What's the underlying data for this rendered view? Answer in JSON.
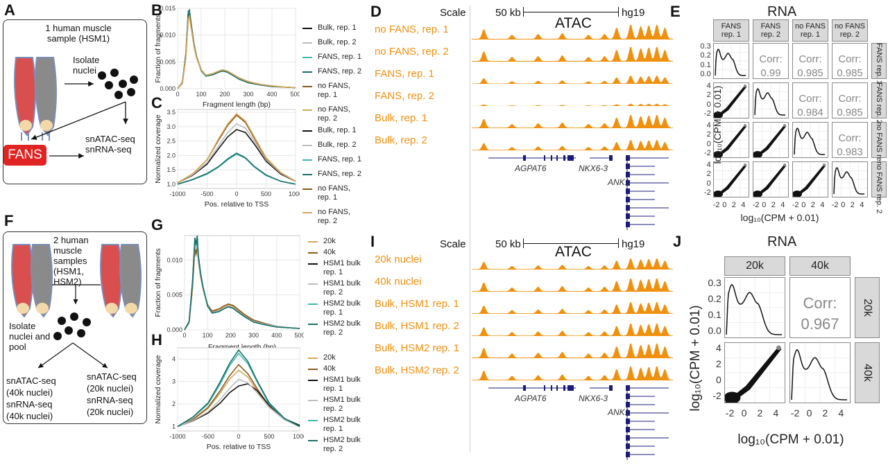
{
  "panels": {
    "A": {
      "label": "A",
      "sample": "1 human muscle sample (HSM1)",
      "isolate": "Isolate nuclei",
      "fans": "FANS",
      "assays": "snATAC-seq\nsnRNA-seq"
    },
    "F": {
      "label": "F",
      "sample": "2 human muscle samples (HSM1, HSM2)",
      "isolate": "Isolate nuclei and pool",
      "left": "snATAC-seq (40k nuclei)\nsnRNA-seq (40k nuclei)",
      "right": "snATAC-seq (20k nuclei)\nsnRNA-seq (20k nuclei)"
    },
    "D": {
      "label": "D"
    },
    "I": {
      "label": "I"
    },
    "E": {
      "label": "E"
    },
    "J": {
      "label": "J"
    }
  },
  "colors": {
    "black": "#111111",
    "grey": "#bdbdbd",
    "teal_light": "#3fb7ad",
    "teal_dark": "#1a6f68",
    "brown": "#8a5a1a",
    "gold": "#d4a85a",
    "orange": "#f0900f",
    "navy": "#1b1b7a"
  },
  "chart_data": [
    {
      "panel": "B",
      "type": "line",
      "xlabel": "Fragment length (bp)",
      "ylabel": "Fraction of fragments",
      "xlim": [
        0,
        500
      ],
      "ylim": [
        0,
        0.015
      ],
      "xticks": [
        0,
        100,
        200,
        300,
        400,
        500
      ],
      "yticks": [
        0.0,
        0.005,
        0.01,
        0.015
      ],
      "x": [
        0,
        20,
        35,
        45,
        50,
        60,
        70,
        80,
        100,
        120,
        150,
        170,
        190,
        210,
        230,
        260,
        300,
        350,
        400,
        450,
        500
      ],
      "series": [
        {
          "name": "Bulk, rep. 1",
          "color": "#111111",
          "values": [
            0,
            0.001,
            0.006,
            0.0135,
            0.014,
            0.011,
            0.008,
            0.006,
            0.0035,
            0.0025,
            0.0028,
            0.0032,
            0.0035,
            0.0033,
            0.0028,
            0.002,
            0.0013,
            0.0008,
            0.0005,
            0.0003,
            0.0002
          ]
        },
        {
          "name": "Bulk, rep. 2",
          "color": "#bdbdbd",
          "values": [
            0,
            0.001,
            0.0058,
            0.0128,
            0.0133,
            0.0106,
            0.0077,
            0.0058,
            0.0034,
            0.0024,
            0.0027,
            0.0031,
            0.0034,
            0.0032,
            0.0027,
            0.0019,
            0.0012,
            0.0008,
            0.0005,
            0.0003,
            0.0002
          ]
        },
        {
          "name": "FANS, rep. 1",
          "color": "#3fb7ad",
          "values": [
            0,
            0.0012,
            0.0065,
            0.0142,
            0.0145,
            0.0112,
            0.0082,
            0.006,
            0.0033,
            0.0023,
            0.0026,
            0.003,
            0.0033,
            0.0031,
            0.0026,
            0.0018,
            0.0011,
            0.0007,
            0.0004,
            0.0003,
            0.0002
          ]
        },
        {
          "name": "FANS, rep. 2",
          "color": "#1a6f68",
          "values": [
            0,
            0.0012,
            0.0066,
            0.0144,
            0.0147,
            0.0114,
            0.0083,
            0.0061,
            0.0034,
            0.0024,
            0.0026,
            0.003,
            0.0033,
            0.0031,
            0.0026,
            0.0018,
            0.0011,
            0.0007,
            0.0004,
            0.0003,
            0.0002
          ]
        },
        {
          "name": "no FANS, rep. 1",
          "color": "#8a5a1a",
          "values": [
            0,
            0.0011,
            0.006,
            0.0132,
            0.0137,
            0.0108,
            0.0079,
            0.0059,
            0.0035,
            0.0025,
            0.0028,
            0.0032,
            0.0035,
            0.0033,
            0.0028,
            0.002,
            0.0013,
            0.0008,
            0.0005,
            0.0003,
            0.0002
          ]
        },
        {
          "name": "no FANS, rep. 2",
          "color": "#d4a85a",
          "values": [
            0,
            0.0011,
            0.0059,
            0.013,
            0.0135,
            0.0107,
            0.0078,
            0.0058,
            0.0035,
            0.0025,
            0.0028,
            0.0032,
            0.0035,
            0.0033,
            0.0028,
            0.002,
            0.0013,
            0.0008,
            0.0005,
            0.0003,
            0.0002
          ]
        }
      ]
    },
    {
      "panel": "C",
      "type": "line",
      "xlabel": "Pos. relative to TSS",
      "ylabel": "Normalized coverage",
      "xlim": [
        -1000,
        1000
      ],
      "ylim": [
        0.85,
        3.6
      ],
      "xticks": [
        -1000,
        -500,
        0,
        500,
        1000
      ],
      "yticks": [
        1.0,
        1.5,
        2.0,
        2.5,
        3.0,
        3.5
      ],
      "x": [
        -1000,
        -750,
        -500,
        -300,
        -150,
        0,
        150,
        300,
        500,
        750,
        1000
      ],
      "series": [
        {
          "name": "Bulk, rep. 1",
          "color": "#111111",
          "values": [
            1.05,
            1.3,
            1.7,
            2.25,
            2.65,
            2.9,
            2.8,
            2.4,
            1.8,
            1.35,
            1.1
          ]
        },
        {
          "name": "Bulk, rep. 2",
          "color": "#bdbdbd",
          "values": [
            1.05,
            1.32,
            1.75,
            2.35,
            2.8,
            3.1,
            2.95,
            2.5,
            1.85,
            1.38,
            1.1
          ]
        },
        {
          "name": "FANS, rep. 1",
          "color": "#3fb7ad",
          "values": [
            1.0,
            1.15,
            1.35,
            1.6,
            1.85,
            2.05,
            1.9,
            1.6,
            1.3,
            1.1,
            1.0
          ]
        },
        {
          "name": "FANS, rep. 2",
          "color": "#1a6f68",
          "values": [
            1.0,
            1.16,
            1.37,
            1.62,
            1.88,
            2.08,
            1.92,
            1.62,
            1.32,
            1.1,
            1.0
          ]
        },
        {
          "name": "no FANS, rep. 1",
          "color": "#8a5a1a",
          "values": [
            1.05,
            1.35,
            1.85,
            2.55,
            3.05,
            3.4,
            3.15,
            2.6,
            1.9,
            1.4,
            1.1
          ]
        },
        {
          "name": "no FANS, rep. 2",
          "color": "#d4a85a",
          "values": [
            1.05,
            1.35,
            1.85,
            2.6,
            3.1,
            3.45,
            3.2,
            2.65,
            1.92,
            1.4,
            1.1
          ]
        }
      ]
    },
    {
      "panel": "G",
      "type": "line",
      "xlabel": "Fragment length (bp)",
      "ylabel": "Fraction of fragments",
      "xlim": [
        0,
        500
      ],
      "ylim": [
        0,
        0.0135
      ],
      "xticks": [
        0,
        100,
        200,
        300,
        400,
        500
      ],
      "yticks": [
        0.0,
        0.005,
        0.01
      ],
      "x": [
        0,
        20,
        35,
        45,
        50,
        55,
        60,
        70,
        80,
        100,
        120,
        150,
        170,
        190,
        210,
        230,
        260,
        300,
        350,
        400,
        450,
        500
      ],
      "series": [
        {
          "name": "20k",
          "color": "#d4a85a",
          "values": [
            0,
            0.001,
            0.006,
            0.0115,
            0.0105,
            0.012,
            0.0098,
            0.0075,
            0.0058,
            0.0035,
            0.0026,
            0.0029,
            0.0033,
            0.0036,
            0.0034,
            0.0029,
            0.0021,
            0.0013,
            0.0008,
            0.0005,
            0.0003,
            0.0002
          ]
        },
        {
          "name": "40k",
          "color": "#8a5a1a",
          "values": [
            0,
            0.001,
            0.0062,
            0.0118,
            0.0108,
            0.0123,
            0.01,
            0.0076,
            0.0059,
            0.0036,
            0.0027,
            0.003,
            0.0034,
            0.0037,
            0.0035,
            0.003,
            0.0022,
            0.0014,
            0.0009,
            0.0005,
            0.0003,
            0.0002
          ]
        },
        {
          "name": "HSM1 bulk rep. 1",
          "color": "#111111",
          "values": [
            0,
            0.0011,
            0.0068,
            0.0128,
            0.0118,
            0.013,
            0.0103,
            0.0078,
            0.006,
            0.0035,
            0.0025,
            0.0027,
            0.0031,
            0.0034,
            0.0032,
            0.0027,
            0.002,
            0.0012,
            0.0008,
            0.0005,
            0.0003,
            0.0002
          ]
        },
        {
          "name": "HSM1 bulk rep. 2",
          "color": "#bdbdbd",
          "values": [
            0,
            0.0011,
            0.0066,
            0.0124,
            0.0115,
            0.0127,
            0.0101,
            0.0077,
            0.0059,
            0.0035,
            0.0025,
            0.0027,
            0.0031,
            0.0034,
            0.0032,
            0.0027,
            0.002,
            0.0012,
            0.0008,
            0.0005,
            0.0003,
            0.0002
          ]
        },
        {
          "name": "HSM2 bulk rep. 1",
          "color": "#3fb7ad",
          "values": [
            0,
            0.0012,
            0.007,
            0.013,
            0.012,
            0.0133,
            0.0106,
            0.008,
            0.0061,
            0.0034,
            0.0024,
            0.0026,
            0.003,
            0.0033,
            0.0031,
            0.0026,
            0.0019,
            0.0011,
            0.0007,
            0.0004,
            0.0003,
            0.0002
          ]
        },
        {
          "name": "HSM2 bulk rep. 2",
          "color": "#1a6f68",
          "values": [
            0,
            0.0012,
            0.0071,
            0.0132,
            0.0122,
            0.0135,
            0.0107,
            0.0081,
            0.0062,
            0.0034,
            0.0024,
            0.0026,
            0.003,
            0.0033,
            0.0031,
            0.0026,
            0.0019,
            0.0011,
            0.0007,
            0.0004,
            0.0003,
            0.0002
          ]
        }
      ]
    },
    {
      "panel": "H",
      "type": "line",
      "xlabel": "Pos. relative to TSS",
      "ylabel": "Normalized coverage",
      "xlim": [
        -1000,
        1000
      ],
      "ylim": [
        0.8,
        4.5
      ],
      "xticks": [
        -1000,
        -500,
        0,
        500,
        1000
      ],
      "yticks": [
        1,
        2,
        3,
        4
      ],
      "x": [
        -1000,
        -750,
        -500,
        -300,
        -150,
        0,
        150,
        300,
        500,
        750,
        1000
      ],
      "series": [
        {
          "name": "20k",
          "color": "#d4a85a",
          "values": [
            1.0,
            1.3,
            1.8,
            2.5,
            3.1,
            3.5,
            3.2,
            2.6,
            1.85,
            1.3,
            1.0
          ]
        },
        {
          "name": "40k",
          "color": "#8a5a1a",
          "values": [
            1.0,
            1.32,
            1.85,
            2.6,
            3.25,
            3.75,
            3.35,
            2.7,
            1.9,
            1.32,
            1.0
          ]
        },
        {
          "name": "HSM1 bulk rep. 1",
          "color": "#111111",
          "values": [
            1.0,
            1.25,
            1.6,
            2.05,
            2.5,
            2.8,
            2.9,
            2.6,
            1.95,
            1.35,
            1.05
          ]
        },
        {
          "name": "HSM1 bulk rep. 2",
          "color": "#bdbdbd",
          "values": [
            1.0,
            1.27,
            1.65,
            2.2,
            2.7,
            3.1,
            2.95,
            2.5,
            1.85,
            1.3,
            1.0
          ]
        },
        {
          "name": "HSM2 bulk rep. 1",
          "color": "#3fb7ad",
          "values": [
            1.0,
            1.4,
            2.0,
            2.9,
            3.7,
            4.25,
            3.8,
            3.0,
            2.0,
            1.35,
            1.0
          ]
        },
        {
          "name": "HSM2 bulk rep. 2",
          "color": "#1a6f68",
          "values": [
            1.0,
            1.42,
            2.05,
            3.0,
            3.8,
            4.4,
            3.9,
            3.05,
            2.05,
            1.36,
            1.0
          ]
        }
      ]
    }
  ],
  "browserD": {
    "scale": "Scale",
    "scalebar": "50 kb",
    "genome": "hg19",
    "title": "ATAC",
    "tracks": [
      "no FANS, rep. 1",
      "no FANS, rep. 2",
      "FANS, rep. 1",
      "FANS, rep. 2",
      "Bulk, rep. 1",
      "Bulk, rep. 2"
    ],
    "track_heights": [
      1.0,
      1.0,
      0.55,
      0.15,
      0.9,
      0.7
    ],
    "genes": [
      "AGPAT6",
      "NKX6-3",
      "ANK1"
    ]
  },
  "browserI": {
    "scale": "Scale",
    "scalebar": "50 kb",
    "genome": "hg19",
    "title": "ATAC",
    "tracks": [
      "20k nuclei",
      "40k nuclei",
      "Bulk, HSM1 rep. 1",
      "Bulk, HSM1 rep. 2",
      "Bulk, HSM2 rep. 1",
      "Bulk, HSM2 rep. 2"
    ],
    "track_heights": [
      0.75,
      0.9,
      0.8,
      0.85,
      1.0,
      0.95
    ],
    "genes": [
      "AGPAT6",
      "NKX6-3",
      "ANK1"
    ]
  },
  "rnaE": {
    "title": "RNA",
    "axis": "log₁₀(CPM + 0.01)",
    "cols": [
      "FANS rep. 1",
      "FANS rep. 2",
      "no FANS rep. 1",
      "no FANS rep. 2"
    ],
    "rows": [
      "FANS rep. 1",
      "FANS rep. 2",
      "no FANS rep. 1",
      "no FANS rep. 2"
    ],
    "corr_label": "Corr:",
    "corr": {
      "r0c1": "0.99",
      "r0c2": "0.985",
      "r0c3": "0.985",
      "r1c2": "0.984",
      "r1c3": "0.985",
      "r2c3": "0.983"
    },
    "y_ticks_top": [
      "0.3",
      "0.2",
      "0.1",
      "0.0"
    ],
    "y_ticks": [
      "4",
      "2",
      "0",
      "-2"
    ],
    "x_ticks": [
      "-2",
      "0",
      "2",
      "4"
    ]
  },
  "rnaJ": {
    "title": "RNA",
    "axis": "log₁₀(CPM + 0.01)",
    "cols": [
      "20k",
      "40k"
    ],
    "rows": [
      "20k",
      "40k"
    ],
    "corr_label": "Corr:",
    "corr": "0.967",
    "y_ticks_top": [
      "0.3",
      "0.2",
      "0.1",
      "0.0"
    ],
    "y_ticks": [
      "4",
      "2",
      "0",
      "-2"
    ],
    "x_ticks": [
      "-2",
      "0",
      "2",
      "4"
    ]
  }
}
